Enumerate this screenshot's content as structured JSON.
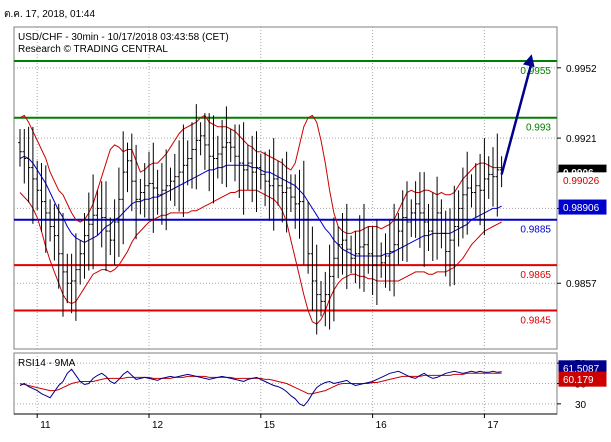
{
  "timestamp": "ต.ค. 17, 2018, 01:44",
  "colors": {
    "background": "#ffffff",
    "grid": "#a9a9a9",
    "price": "#000000",
    "bollinger": "#cc0000",
    "moving_average": "#0000cc",
    "resistance": "#008000",
    "pivot": "#0000cc",
    "support": "#e00000",
    "forecast_arrow": "#00008b",
    "rsi_line": "#00008b",
    "rsi_ma": "#cc0000"
  },
  "chart_data": [
    {
      "type": "line",
      "subtype": "ohlc",
      "title": "USD/CHF - 30min - 10/17/2018 03:43:58 (CET)",
      "subtitle": "Research © TRADING CENTRAL",
      "ylim": [
        0.9828,
        0.997
      ],
      "y_ticks": [
        "0.9952",
        "0.9921",
        "0.9906",
        "0.9890",
        "0.9857"
      ],
      "x_ticks": [
        {
          "label": "11",
          "index": 4
        },
        {
          "label": "12",
          "index": 30
        },
        {
          "label": "15",
          "index": 56
        },
        {
          "label": "16",
          "index": 82
        },
        {
          "label": "17",
          "index": 108
        }
      ],
      "bar_count": 113,
      "grid": true,
      "levels": [
        {
          "value": 0.9955,
          "label": "0.9955",
          "kind": "resistance"
        },
        {
          "value": 0.993,
          "label": "0.993",
          "kind": "resistance"
        },
        {
          "value": 0.9885,
          "label": "0.9885",
          "kind": "pivot"
        },
        {
          "value": 0.9865,
          "label": "0.9865",
          "kind": "support"
        },
        {
          "value": 0.9845,
          "label": "0.9845",
          "kind": "support"
        }
      ],
      "price_badges": [
        {
          "label": "0.9906",
          "value": 0.9906,
          "kind": "last"
        },
        {
          "label": "0.99026",
          "value": 0.99026,
          "kind": "bollinger"
        },
        {
          "label": "0.98906",
          "value": 0.98906,
          "kind": "ma"
        }
      ],
      "close": [
        0.9915,
        0.9912,
        0.9908,
        0.9903,
        0.9898,
        0.9893,
        0.9888,
        0.9882,
        0.9878,
        0.987,
        0.9862,
        0.9857,
        0.9858,
        0.9863,
        0.987,
        0.9878,
        0.9883,
        0.9887,
        0.989,
        0.9886,
        0.988,
        0.9876,
        0.9884,
        0.9894,
        0.9906,
        0.9911,
        0.9902,
        0.9894,
        0.9897,
        0.99,
        0.9901,
        0.9899,
        0.9896,
        0.9898,
        0.99,
        0.9902,
        0.9904,
        0.9906,
        0.9909,
        0.9912,
        0.9916,
        0.992,
        0.9922,
        0.9918,
        0.9913,
        0.9912,
        0.9914,
        0.9917,
        0.9919,
        0.9917,
        0.9913,
        0.991,
        0.9907,
        0.991,
        0.9906,
        0.9908,
        0.9905,
        0.9902,
        0.99,
        0.9903,
        0.99,
        0.9897,
        0.9899,
        0.9895,
        0.9892,
        0.9893,
        0.9885,
        0.987,
        0.9858,
        0.9852,
        0.9849,
        0.9852,
        0.986,
        0.9868,
        0.9874,
        0.9876,
        0.9872,
        0.9868,
        0.987,
        0.9873,
        0.9874,
        0.987,
        0.9865,
        0.9869,
        0.9866,
        0.9869,
        0.9871,
        0.9874,
        0.988,
        0.9886,
        0.9884,
        0.9888,
        0.9892,
        0.9888,
        0.9884,
        0.988,
        0.9885,
        0.9888,
        0.9879,
        0.9871,
        0.9876,
        0.9882,
        0.989,
        0.9896,
        0.9899,
        0.9897,
        0.99,
        0.9898,
        0.9903,
        0.9905,
        0.9904,
        0.9907,
        0.9906
      ],
      "upper_band": [
        0.993,
        0.9931,
        0.9928,
        0.9924,
        0.992,
        0.9916,
        0.9912,
        0.9906,
        0.9902,
        0.9898,
        0.9896,
        0.9892,
        0.9888,
        0.9885,
        0.9884,
        0.9885,
        0.9888,
        0.9892,
        0.9898,
        0.9904,
        0.991,
        0.9916,
        0.9918,
        0.9917,
        0.9915,
        0.9916,
        0.9916,
        0.9911,
        0.9906,
        0.9907,
        0.9909,
        0.991,
        0.991,
        0.9912,
        0.9914,
        0.9917,
        0.992,
        0.9923,
        0.9925,
        0.9926,
        0.9927,
        0.9928,
        0.993,
        0.9931,
        0.9928,
        0.9927,
        0.9926,
        0.9926,
        0.9926,
        0.9925,
        0.9924,
        0.9922,
        0.992,
        0.9918,
        0.9917,
        0.9915,
        0.9915,
        0.9914,
        0.9913,
        0.9912,
        0.9911,
        0.991,
        0.9908,
        0.9907,
        0.991,
        0.9918,
        0.9926,
        0.993,
        0.9931,
        0.9928,
        0.992,
        0.991,
        0.9898,
        0.9888,
        0.9882,
        0.988,
        0.9879,
        0.9879,
        0.988,
        0.988,
        0.9881,
        0.9882,
        0.9882,
        0.9882,
        0.9881,
        0.9882,
        0.9883,
        0.9885,
        0.9889,
        0.9893,
        0.9897,
        0.9898,
        0.9897,
        0.9897,
        0.9898,
        0.9898,
        0.9897,
        0.9896,
        0.9897,
        0.9896,
        0.9896,
        0.9897,
        0.99,
        0.9903,
        0.9905,
        0.9907,
        0.9909,
        0.991,
        0.991,
        0.9909,
        0.9908,
        0.9908,
        0.9908
      ],
      "middle_ma": [
        0.9912,
        0.9913,
        0.9912,
        0.991,
        0.9907,
        0.9904,
        0.9901,
        0.9897,
        0.9893,
        0.9889,
        0.9886,
        0.9882,
        0.9879,
        0.9877,
        0.9876,
        0.9875,
        0.9876,
        0.9877,
        0.9878,
        0.988,
        0.9882,
        0.9883,
        0.9885,
        0.9886,
        0.9888,
        0.989,
        0.9892,
        0.9893,
        0.9893,
        0.9894,
        0.9894,
        0.9895,
        0.9895,
        0.9896,
        0.9897,
        0.9898,
        0.9899,
        0.99,
        0.9901,
        0.9902,
        0.9903,
        0.9904,
        0.9905,
        0.9906,
        0.9907,
        0.9907,
        0.9908,
        0.9908,
        0.9909,
        0.9909,
        0.9909,
        0.9909,
        0.9909,
        0.9909,
        0.9908,
        0.9908,
        0.9907,
        0.9906,
        0.9906,
        0.9905,
        0.9904,
        0.9903,
        0.9902,
        0.9901,
        0.99,
        0.9898,
        0.9896,
        0.9893,
        0.989,
        0.9887,
        0.9884,
        0.9881,
        0.9879,
        0.9876,
        0.9874,
        0.9872,
        0.9871,
        0.987,
        0.9869,
        0.9869,
        0.9869,
        0.9869,
        0.9869,
        0.9869,
        0.9869,
        0.987,
        0.987,
        0.9871,
        0.9872,
        0.9873,
        0.9874,
        0.9875,
        0.9876,
        0.9877,
        0.9878,
        0.9878,
        0.9879,
        0.9879,
        0.9879,
        0.9879,
        0.9879,
        0.988,
        0.9881,
        0.9882,
        0.9883,
        0.9885,
        0.9886,
        0.9887,
        0.9888,
        0.9889,
        0.989,
        0.989,
        0.9891
      ],
      "lower_band": [
        0.9897,
        0.9895,
        0.9893,
        0.989,
        0.9886,
        0.988,
        0.9873,
        0.9867,
        0.9862,
        0.9857,
        0.9852,
        0.9849,
        0.9848,
        0.9849,
        0.9852,
        0.9855,
        0.9858,
        0.9861,
        0.9862,
        0.9863,
        0.9863,
        0.9862,
        0.9863,
        0.9865,
        0.9868,
        0.9871,
        0.9875,
        0.9878,
        0.988,
        0.9882,
        0.9884,
        0.9885,
        0.9886,
        0.9887,
        0.9887,
        0.9888,
        0.9888,
        0.9888,
        0.9888,
        0.9888,
        0.9889,
        0.9889,
        0.989,
        0.9891,
        0.9892,
        0.9893,
        0.9894,
        0.9895,
        0.9896,
        0.9897,
        0.9897,
        0.9898,
        0.9898,
        0.9898,
        0.9898,
        0.9898,
        0.9897,
        0.9896,
        0.9895,
        0.9894,
        0.9892,
        0.9889,
        0.9884,
        0.9876,
        0.9868,
        0.986,
        0.9852,
        0.9845,
        0.984,
        0.9839,
        0.9841,
        0.9845,
        0.985,
        0.9854,
        0.9857,
        0.9859,
        0.986,
        0.9861,
        0.9861,
        0.986,
        0.986,
        0.9859,
        0.9859,
        0.9858,
        0.9858,
        0.9858,
        0.9858,
        0.9858,
        0.9858,
        0.9859,
        0.986,
        0.9861,
        0.9862,
        0.9862,
        0.9862,
        0.9861,
        0.9861,
        0.9862,
        0.9862,
        0.9862,
        0.9863,
        0.9864,
        0.9866,
        0.9868,
        0.9871,
        0.9874,
        0.9876,
        0.9878,
        0.988,
        0.9881,
        0.9882,
        0.9883,
        0.9884
      ],
      "forecast_arrow": {
        "from_index": 112,
        "from_value": 0.9905,
        "to_index": 119,
        "to_value": 0.9958
      }
    },
    {
      "type": "line",
      "title": "RSI14 - 9MA",
      "ylim": [
        20,
        80
      ],
      "y_ticks": [
        "70",
        "50",
        "30"
      ],
      "grid": true,
      "badges": [
        {
          "label": "61.5087",
          "value": 61.5087,
          "kind": "rsi"
        },
        {
          "label": "60.179",
          "value": 60.179,
          "kind": "ma"
        }
      ],
      "rsi": [
        48,
        50,
        47,
        45,
        43,
        40,
        38,
        36,
        42,
        48,
        52,
        60,
        64,
        58,
        52,
        49,
        50,
        55,
        58,
        60,
        57,
        52,
        50,
        54,
        59,
        62,
        58,
        54,
        55,
        56,
        55,
        54,
        53,
        55,
        56,
        57,
        56,
        57,
        58,
        59,
        58,
        57,
        56,
        55,
        54,
        55,
        56,
        57,
        56,
        55,
        54,
        53,
        52,
        54,
        55,
        56,
        54,
        52,
        50,
        48,
        47,
        45,
        42,
        38,
        35,
        30,
        28,
        33,
        40,
        46,
        49,
        51,
        52,
        50,
        51,
        52,
        53,
        50,
        48,
        49,
        50,
        51,
        52,
        54,
        56,
        58,
        60,
        61,
        62,
        60,
        58,
        56,
        55,
        58,
        60,
        57,
        55,
        56,
        58,
        60,
        61,
        62,
        61,
        60,
        61,
        62,
        61,
        62,
        61,
        61,
        62,
        61,
        61.5
      ],
      "ma": [
        50,
        49,
        48,
        47,
        46,
        45,
        44,
        43,
        43,
        44,
        46,
        48,
        50,
        51,
        52,
        52,
        52,
        52,
        53,
        54,
        55,
        55,
        55,
        55,
        55,
        56,
        56,
        56,
        56,
        56,
        56,
        55,
        55,
        55,
        55,
        55,
        56,
        56,
        56,
        57,
        57,
        57,
        57,
        57,
        56,
        56,
        56,
        56,
        56,
        56,
        55,
        55,
        55,
        55,
        55,
        55,
        55,
        54,
        54,
        53,
        52,
        51,
        50,
        48,
        46,
        44,
        42,
        40,
        40,
        41,
        42,
        43,
        45,
        47,
        49,
        50,
        50,
        50,
        50,
        50,
        50,
        50,
        51,
        51,
        52,
        53,
        54,
        55,
        56,
        57,
        57,
        57,
        57,
        57,
        58,
        58,
        58,
        58,
        58,
        58,
        58,
        59,
        59,
        59,
        60,
        60,
        60,
        60,
        60,
        60,
        60,
        60,
        60.2
      ]
    }
  ]
}
